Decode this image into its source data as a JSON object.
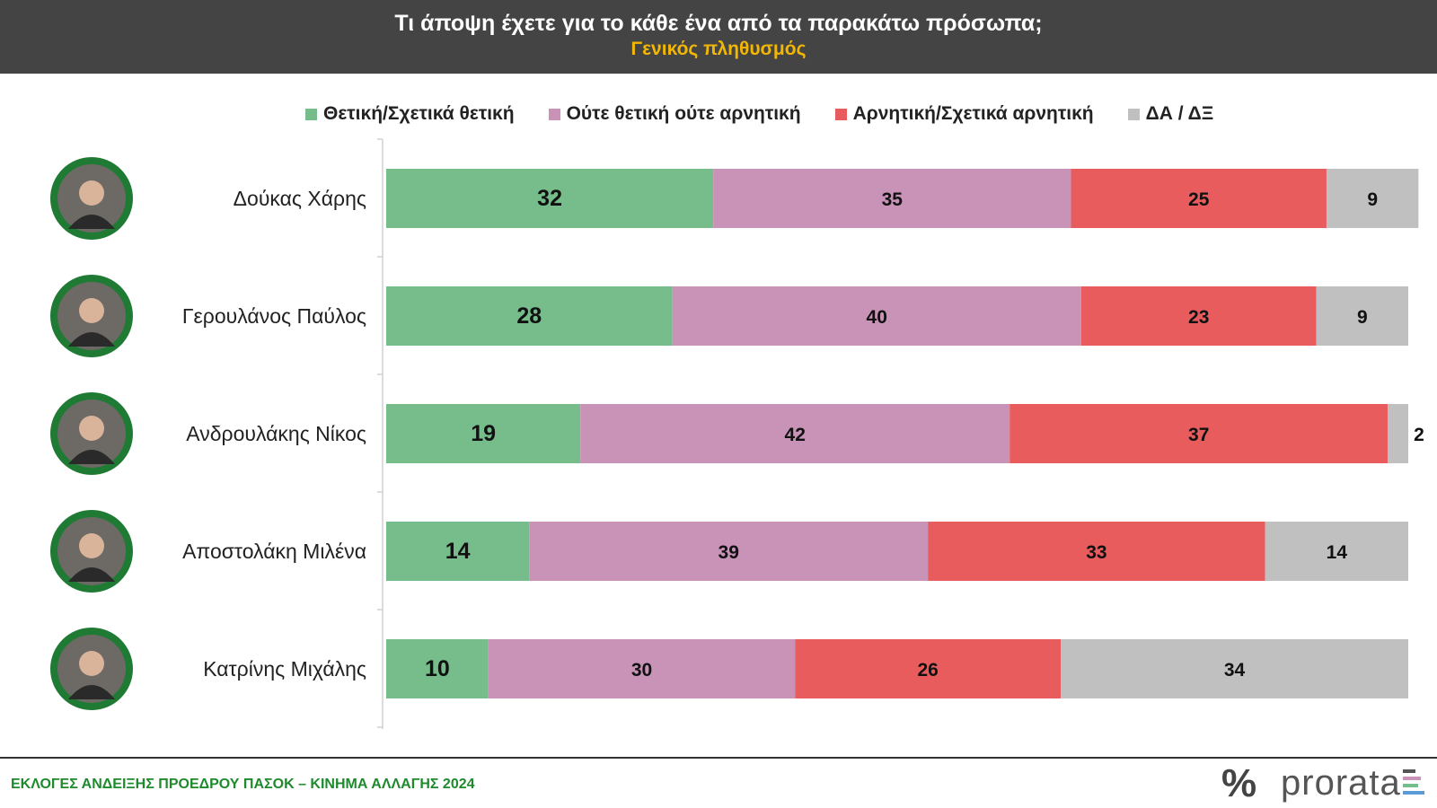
{
  "header": {
    "title": "Τι άποψη έχετε για το κάθε ένα από τα παρακάτω πρόσωπα;",
    "subtitle": "Γενικός πληθυσμός"
  },
  "legend": [
    {
      "label": "Θετική/Σχετικά θετική",
      "color": "#77bd8b"
    },
    {
      "label": "Ούτε θετική ούτε αρνητική",
      "color": "#c993b8"
    },
    {
      "label": "Αρνητική/Σχετικά αρνητική",
      "color": "#e85c5e"
    },
    {
      "label": "ΔΑ / ΔΞ",
      "color": "#c0c0c0"
    }
  ],
  "chart_data": {
    "type": "bar",
    "orientation": "horizontal",
    "stacked": true,
    "categories": [
      "Δούκας Χάρης",
      "Γερουλάνος Παύλος",
      "Ανδρουλάκης Νίκος",
      "Αποστολάκη Μιλένα",
      "Κατρίνης Μιχάλης"
    ],
    "series": [
      {
        "name": "Θετική/Σχετικά θετική",
        "color": "#77bd8b",
        "values": [
          32,
          28,
          19,
          14,
          10
        ]
      },
      {
        "name": "Ούτε θετική ούτε αρνητική",
        "color": "#c993b8",
        "values": [
          35,
          40,
          42,
          39,
          30
        ]
      },
      {
        "name": "Αρνητική/Σχετικά αρνητική",
        "color": "#e85c5e",
        "values": [
          25,
          23,
          37,
          33,
          26
        ]
      },
      {
        "name": "ΔΑ / ΔΞ",
        "color": "#c0c0c0",
        "values": [
          9,
          9,
          2,
          14,
          34
        ]
      }
    ],
    "xlim": [
      0,
      100
    ],
    "legend_position": "top",
    "grid": false
  },
  "footer": {
    "text": "ΕΚΛΟΓΕΣ ΑΝΔΕΙΞΗΣ ΠΡΟΕΔΡΟΥ ΠΑΣΟΚ – ΚΙΝΗΜΑ ΑΛΛΑΓΗΣ 2024",
    "logo_symbol": "%",
    "logo_text": "prorata"
  }
}
